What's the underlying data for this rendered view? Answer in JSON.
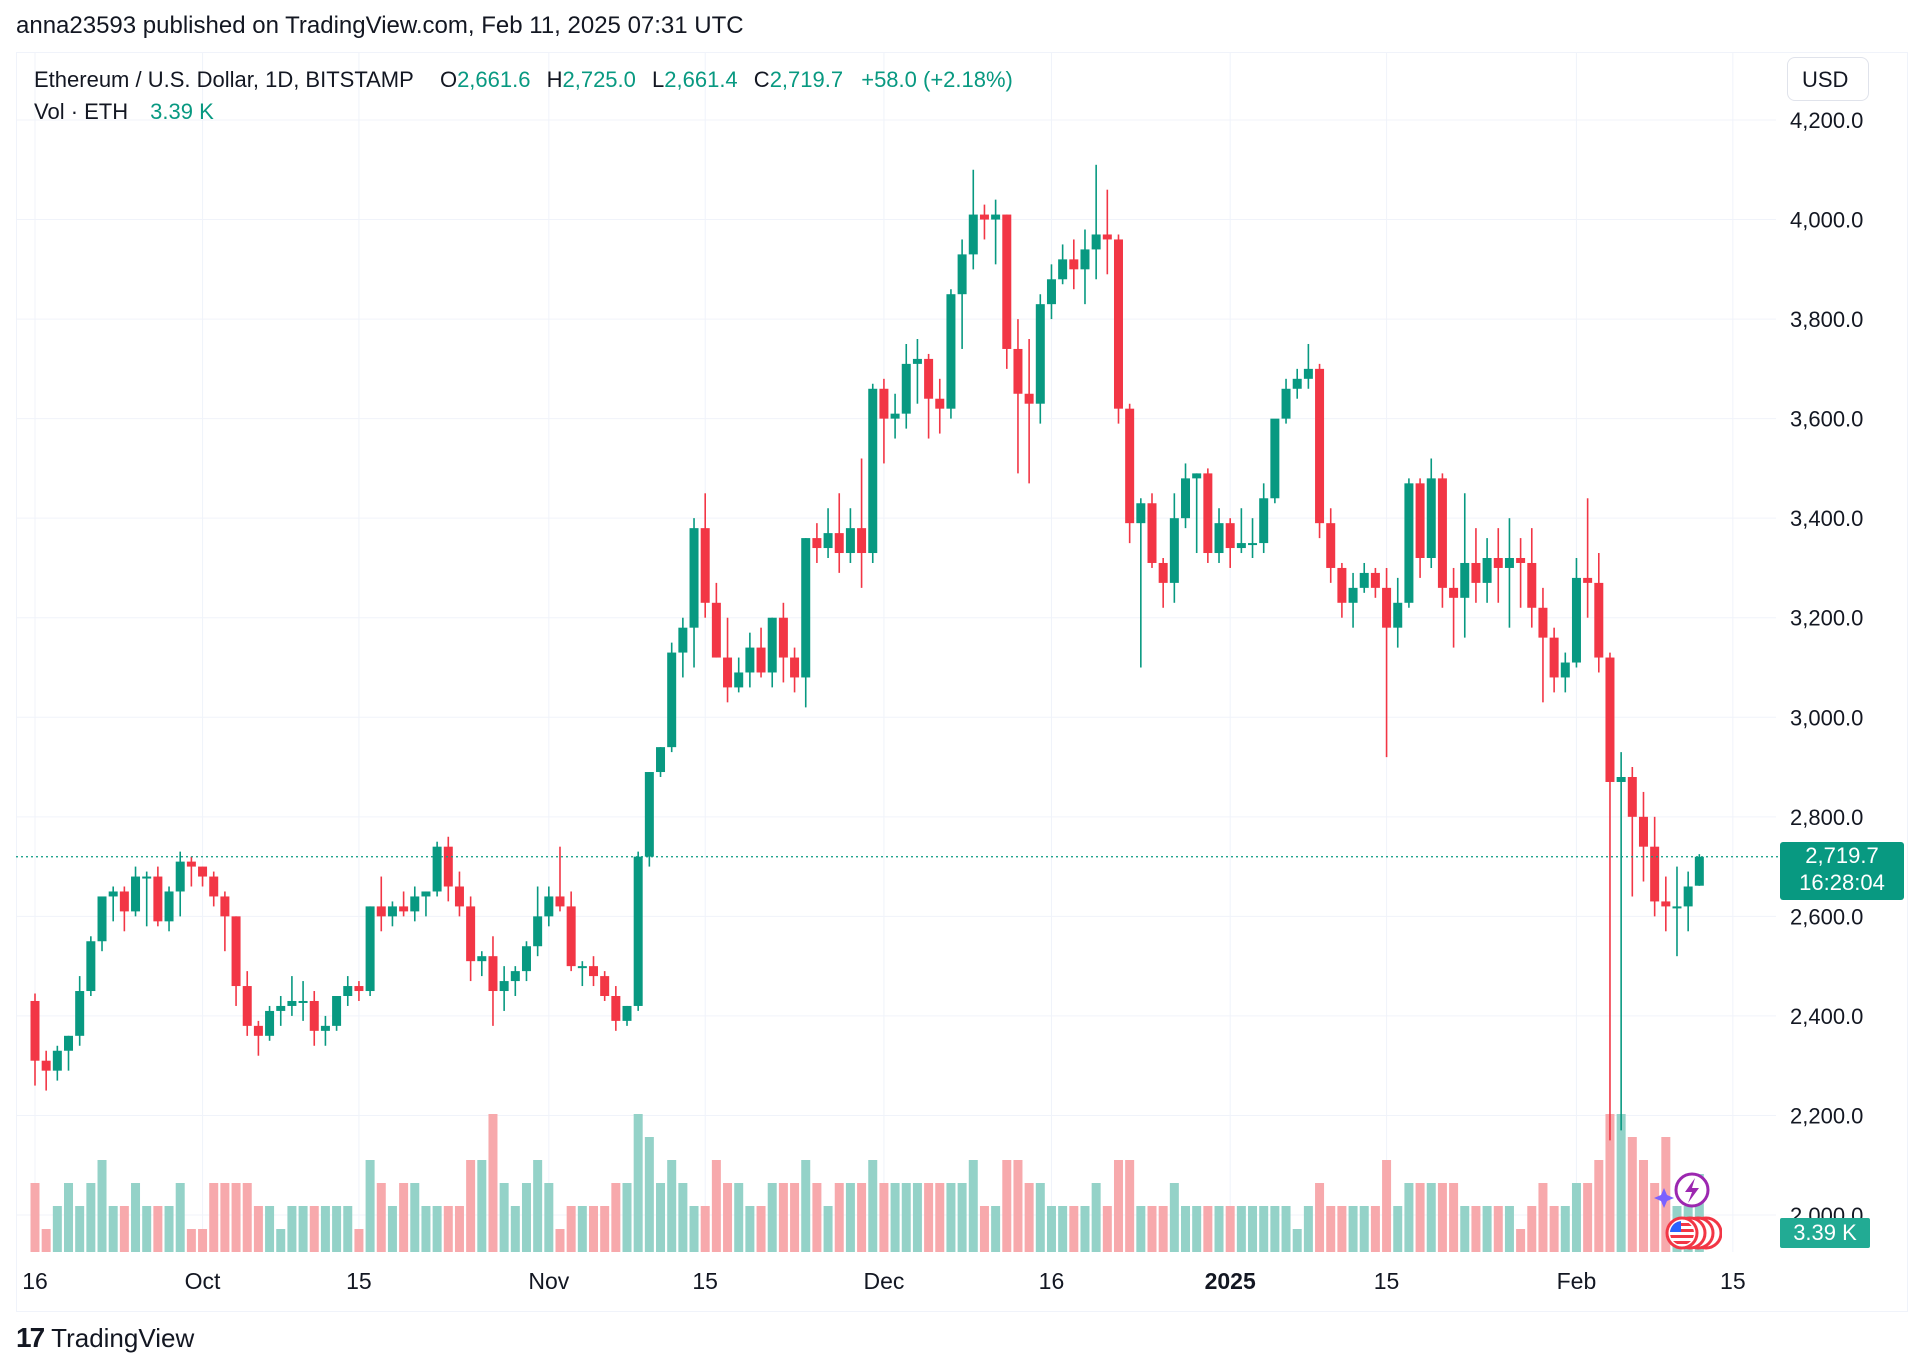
{
  "attribution": "anna23593 published on TradingView.com, Feb 11, 2025 07:31 UTC",
  "legend": {
    "symbol": "Ethereum / U.S. Dollar, 1D, BITSTAMP",
    "o_label": "O",
    "o_value": "2,661.6",
    "h_label": "H",
    "h_value": "2,725.0",
    "l_label": "L",
    "l_value": "2,661.4",
    "c_label": "C",
    "c_value": "2,719.7",
    "change": "+58.0 (+2.18%)",
    "vol_label": "Vol · ETH",
    "vol_value": "3.39 K"
  },
  "currency": "USD",
  "last_price": {
    "price": "2,719.7",
    "countdown": "16:28:04"
  },
  "volume_tag": "3.39 K",
  "footer": {
    "brand": "TradingView"
  },
  "icons": [
    "tradingview-logo-icon",
    "lightning-event-icon",
    "us-flag-event-icon"
  ],
  "colors": {
    "up": "#089981",
    "down": "#F23645",
    "vol_up": "#94D2C8",
    "vol_down": "#F7A9AC",
    "grid": "#F0F3FA"
  },
  "chart_data": {
    "type": "candlestick",
    "symbol": "ETHUSD",
    "interval": "1D",
    "grid": true,
    "ylim": [
      1960,
      4260
    ],
    "yticks": [
      "4,200.0",
      "4,000.0",
      "3,800.0",
      "3,600.0",
      "3,400.0",
      "3,200.0",
      "3,000.0",
      "2,800.0",
      "2,600.0",
      "2,400.0",
      "2,200.0",
      "2,000.0"
    ],
    "xticks": [
      {
        "label": "16",
        "index": 0,
        "bold": false
      },
      {
        "label": "Oct",
        "index": 15,
        "bold": false
      },
      {
        "label": "15",
        "index": 29,
        "bold": false
      },
      {
        "label": "Nov",
        "index": 46,
        "bold": false
      },
      {
        "label": "15",
        "index": 60,
        "bold": false
      },
      {
        "label": "Dec",
        "index": 76,
        "bold": false
      },
      {
        "label": "16",
        "index": 91,
        "bold": false
      },
      {
        "label": "2025",
        "index": 107,
        "bold": true
      },
      {
        "label": "15",
        "index": 121,
        "bold": false
      },
      {
        "label": "Feb",
        "index": 138,
        "bold": false
      },
      {
        "label": "15",
        "index": 152,
        "bold": false
      }
    ],
    "candles": [
      [
        2430,
        2445,
        2260,
        2310,
        3
      ],
      [
        2310,
        2330,
        2250,
        2290,
        1
      ],
      [
        2290,
        2340,
        2270,
        2330,
        2
      ],
      [
        2330,
        2360,
        2290,
        2360,
        3
      ],
      [
        2360,
        2480,
        2340,
        2450,
        2
      ],
      [
        2450,
        2560,
        2440,
        2550,
        3
      ],
      [
        2550,
        2620,
        2530,
        2640,
        4
      ],
      [
        2640,
        2660,
        2590,
        2650,
        2
      ],
      [
        2650,
        2660,
        2570,
        2610,
        2
      ],
      [
        2610,
        2700,
        2600,
        2680,
        3
      ],
      [
        2680,
        2690,
        2580,
        2680,
        2
      ],
      [
        2680,
        2700,
        2580,
        2590,
        2
      ],
      [
        2590,
        2660,
        2570,
        2650,
        2
      ],
      [
        2650,
        2730,
        2600,
        2710,
        3
      ],
      [
        2710,
        2720,
        2660,
        2700,
        1
      ],
      [
        2700,
        2700,
        2660,
        2680,
        1
      ],
      [
        2680,
        2690,
        2620,
        2640,
        3
      ],
      [
        2640,
        2650,
        2530,
        2600,
        3
      ],
      [
        2600,
        2600,
        2420,
        2460,
        3
      ],
      [
        2460,
        2490,
        2360,
        2380,
        3
      ],
      [
        2380,
        2390,
        2320,
        2360,
        2
      ],
      [
        2360,
        2420,
        2350,
        2410,
        2
      ],
      [
        2410,
        2440,
        2380,
        2420,
        1
      ],
      [
        2420,
        2480,
        2400,
        2430,
        2
      ],
      [
        2430,
        2470,
        2390,
        2430,
        2
      ],
      [
        2430,
        2450,
        2340,
        2370,
        2
      ],
      [
        2370,
        2400,
        2340,
        2380,
        2
      ],
      [
        2380,
        2440,
        2370,
        2440,
        2
      ],
      [
        2440,
        2480,
        2420,
        2460,
        2
      ],
      [
        2460,
        2470,
        2430,
        2450,
        1
      ],
      [
        2450,
        2620,
        2440,
        2620,
        4
      ],
      [
        2620,
        2680,
        2570,
        2600,
        3
      ],
      [
        2600,
        2630,
        2580,
        2620,
        2
      ],
      [
        2620,
        2650,
        2600,
        2610,
        3
      ],
      [
        2610,
        2660,
        2590,
        2640,
        3
      ],
      [
        2640,
        2650,
        2600,
        2650,
        2
      ],
      [
        2650,
        2750,
        2640,
        2740,
        2
      ],
      [
        2740,
        2760,
        2630,
        2660,
        2
      ],
      [
        2660,
        2690,
        2600,
        2620,
        2
      ],
      [
        2620,
        2640,
        2470,
        2510,
        4
      ],
      [
        2510,
        2530,
        2480,
        2520,
        4
      ],
      [
        2520,
        2560,
        2380,
        2450,
        6
      ],
      [
        2450,
        2500,
        2410,
        2470,
        3
      ],
      [
        2470,
        2500,
        2440,
        2490,
        2
      ],
      [
        2490,
        2550,
        2470,
        2540,
        3
      ],
      [
        2540,
        2660,
        2520,
        2600,
        4
      ],
      [
        2600,
        2660,
        2580,
        2640,
        3
      ],
      [
        2640,
        2740,
        2610,
        2620,
        1
      ],
      [
        2620,
        2650,
        2490,
        2500,
        2
      ],
      [
        2500,
        2510,
        2460,
        2500,
        2
      ],
      [
        2500,
        2520,
        2460,
        2480,
        2
      ],
      [
        2480,
        2490,
        2430,
        2440,
        2
      ],
      [
        2440,
        2460,
        2370,
        2390,
        3
      ],
      [
        2390,
        2420,
        2380,
        2420,
        3
      ],
      [
        2420,
        2730,
        2410,
        2720,
        6
      ],
      [
        2720,
        2890,
        2700,
        2890,
        5
      ],
      [
        2890,
        2940,
        2880,
        2940,
        3
      ],
      [
        2940,
        3150,
        2930,
        3130,
        4
      ],
      [
        3130,
        3200,
        3080,
        3180,
        3
      ],
      [
        3180,
        3400,
        3100,
        3380,
        2
      ],
      [
        3380,
        3450,
        3200,
        3230,
        2
      ],
      [
        3230,
        3270,
        3120,
        3120,
        4
      ],
      [
        3120,
        3200,
        3030,
        3060,
        3
      ],
      [
        3060,
        3120,
        3050,
        3090,
        3
      ],
      [
        3090,
        3170,
        3060,
        3140,
        2
      ],
      [
        3140,
        3180,
        3080,
        3090,
        2
      ],
      [
        3090,
        3200,
        3060,
        3200,
        3
      ],
      [
        3200,
        3230,
        3070,
        3120,
        3
      ],
      [
        3120,
        3140,
        3050,
        3080,
        3
      ],
      [
        3080,
        3360,
        3020,
        3360,
        4
      ],
      [
        3360,
        3390,
        3310,
        3340,
        3
      ],
      [
        3340,
        3420,
        3320,
        3370,
        2
      ],
      [
        3370,
        3450,
        3290,
        3330,
        3
      ],
      [
        3330,
        3420,
        3310,
        3380,
        3
      ],
      [
        3380,
        3520,
        3260,
        3330,
        3
      ],
      [
        3330,
        3670,
        3310,
        3660,
        4
      ],
      [
        3660,
        3680,
        3510,
        3600,
        3
      ],
      [
        3600,
        3650,
        3560,
        3610,
        3
      ],
      [
        3610,
        3750,
        3580,
        3710,
        3
      ],
      [
        3710,
        3760,
        3630,
        3720,
        3
      ],
      [
        3720,
        3730,
        3560,
        3640,
        3
      ],
      [
        3640,
        3680,
        3570,
        3620,
        3
      ],
      [
        3620,
        3860,
        3600,
        3850,
        3
      ],
      [
        3850,
        3960,
        3740,
        3930,
        3
      ],
      [
        3930,
        4100,
        3900,
        4010,
        4
      ],
      [
        4010,
        4030,
        3960,
        4000,
        2
      ],
      [
        4000,
        4040,
        3910,
        4010,
        2
      ],
      [
        4010,
        4010,
        3700,
        3740,
        4
      ],
      [
        3740,
        3800,
        3490,
        3650,
        4
      ],
      [
        3650,
        3760,
        3470,
        3630,
        3
      ],
      [
        3630,
        3850,
        3590,
        3830,
        3
      ],
      [
        3830,
        3910,
        3800,
        3880,
        2
      ],
      [
        3880,
        3950,
        3870,
        3920,
        2
      ],
      [
        3920,
        3960,
        3860,
        3900,
        2
      ],
      [
        3900,
        3980,
        3830,
        3940,
        2
      ],
      [
        3940,
        4110,
        3880,
        3970,
        3
      ],
      [
        3970,
        4060,
        3890,
        3960,
        2
      ],
      [
        3960,
        3970,
        3590,
        3620,
        4
      ],
      [
        3620,
        3630,
        3350,
        3390,
        4
      ],
      [
        3390,
        3440,
        3100,
        3430,
        2
      ],
      [
        3430,
        3450,
        3300,
        3310,
        2
      ],
      [
        3310,
        3320,
        3220,
        3270,
        2
      ],
      [
        3270,
        3450,
        3230,
        3400,
        3
      ],
      [
        3400,
        3510,
        3380,
        3480,
        2
      ],
      [
        3480,
        3490,
        3330,
        3490,
        2
      ],
      [
        3490,
        3500,
        3310,
        3330,
        2
      ],
      [
        3330,
        3420,
        3310,
        3390,
        2
      ],
      [
        3390,
        3400,
        3300,
        3340,
        2
      ],
      [
        3340,
        3420,
        3330,
        3350,
        2
      ],
      [
        3350,
        3400,
        3320,
        3350,
        2
      ],
      [
        3350,
        3470,
        3330,
        3440,
        2
      ],
      [
        3440,
        3590,
        3430,
        3600,
        2
      ],
      [
        3600,
        3680,
        3590,
        3660,
        2
      ],
      [
        3660,
        3700,
        3640,
        3680,
        1
      ],
      [
        3680,
        3750,
        3660,
        3700,
        2
      ],
      [
        3700,
        3710,
        3360,
        3390,
        3
      ],
      [
        3390,
        3420,
        3270,
        3300,
        2
      ],
      [
        3300,
        3310,
        3200,
        3230,
        2
      ],
      [
        3230,
        3290,
        3180,
        3260,
        2
      ],
      [
        3260,
        3310,
        3250,
        3290,
        2
      ],
      [
        3290,
        3300,
        3240,
        3260,
        2
      ],
      [
        3260,
        3300,
        2920,
        3180,
        4
      ],
      [
        3180,
        3280,
        3140,
        3230,
        2
      ],
      [
        3230,
        3480,
        3220,
        3470,
        3
      ],
      [
        3470,
        3480,
        3280,
        3320,
        3
      ],
      [
        3320,
        3520,
        3300,
        3480,
        3
      ],
      [
        3480,
        3490,
        3220,
        3260,
        3
      ],
      [
        3260,
        3300,
        3140,
        3240,
        3
      ],
      [
        3240,
        3450,
        3160,
        3310,
        2
      ],
      [
        3310,
        3380,
        3230,
        3270,
        2
      ],
      [
        3270,
        3360,
        3230,
        3320,
        2
      ],
      [
        3320,
        3380,
        3230,
        3300,
        2
      ],
      [
        3300,
        3400,
        3180,
        3320,
        2
      ],
      [
        3320,
        3360,
        3220,
        3310,
        1
      ],
      [
        3310,
        3380,
        3180,
        3220,
        2
      ],
      [
        3220,
        3260,
        3030,
        3160,
        3
      ],
      [
        3160,
        3180,
        3050,
        3080,
        2
      ],
      [
        3080,
        3130,
        3050,
        3110,
        2
      ],
      [
        3110,
        3320,
        3100,
        3280,
        3
      ],
      [
        3280,
        3440,
        3200,
        3270,
        3
      ],
      [
        3270,
        3330,
        3090,
        3120,
        4
      ],
      [
        3120,
        3130,
        2150,
        2870,
        6
      ],
      [
        2870,
        2930,
        2170,
        2880,
        6
      ],
      [
        2880,
        2900,
        2640,
        2800,
        5
      ],
      [
        2800,
        2850,
        2670,
        2740,
        4
      ],
      [
        2740,
        2800,
        2600,
        2630,
        3
      ],
      [
        2630,
        2680,
        2570,
        2620,
        5
      ],
      [
        2620,
        2700,
        2520,
        2620,
        2
      ],
      [
        2620,
        2690,
        2570,
        2660,
        2
      ],
      [
        2661.6,
        2725,
        2661.4,
        2719.7,
        3.39
      ]
    ],
    "volume_unit": "K ETH",
    "last_price": 2719.7
  }
}
